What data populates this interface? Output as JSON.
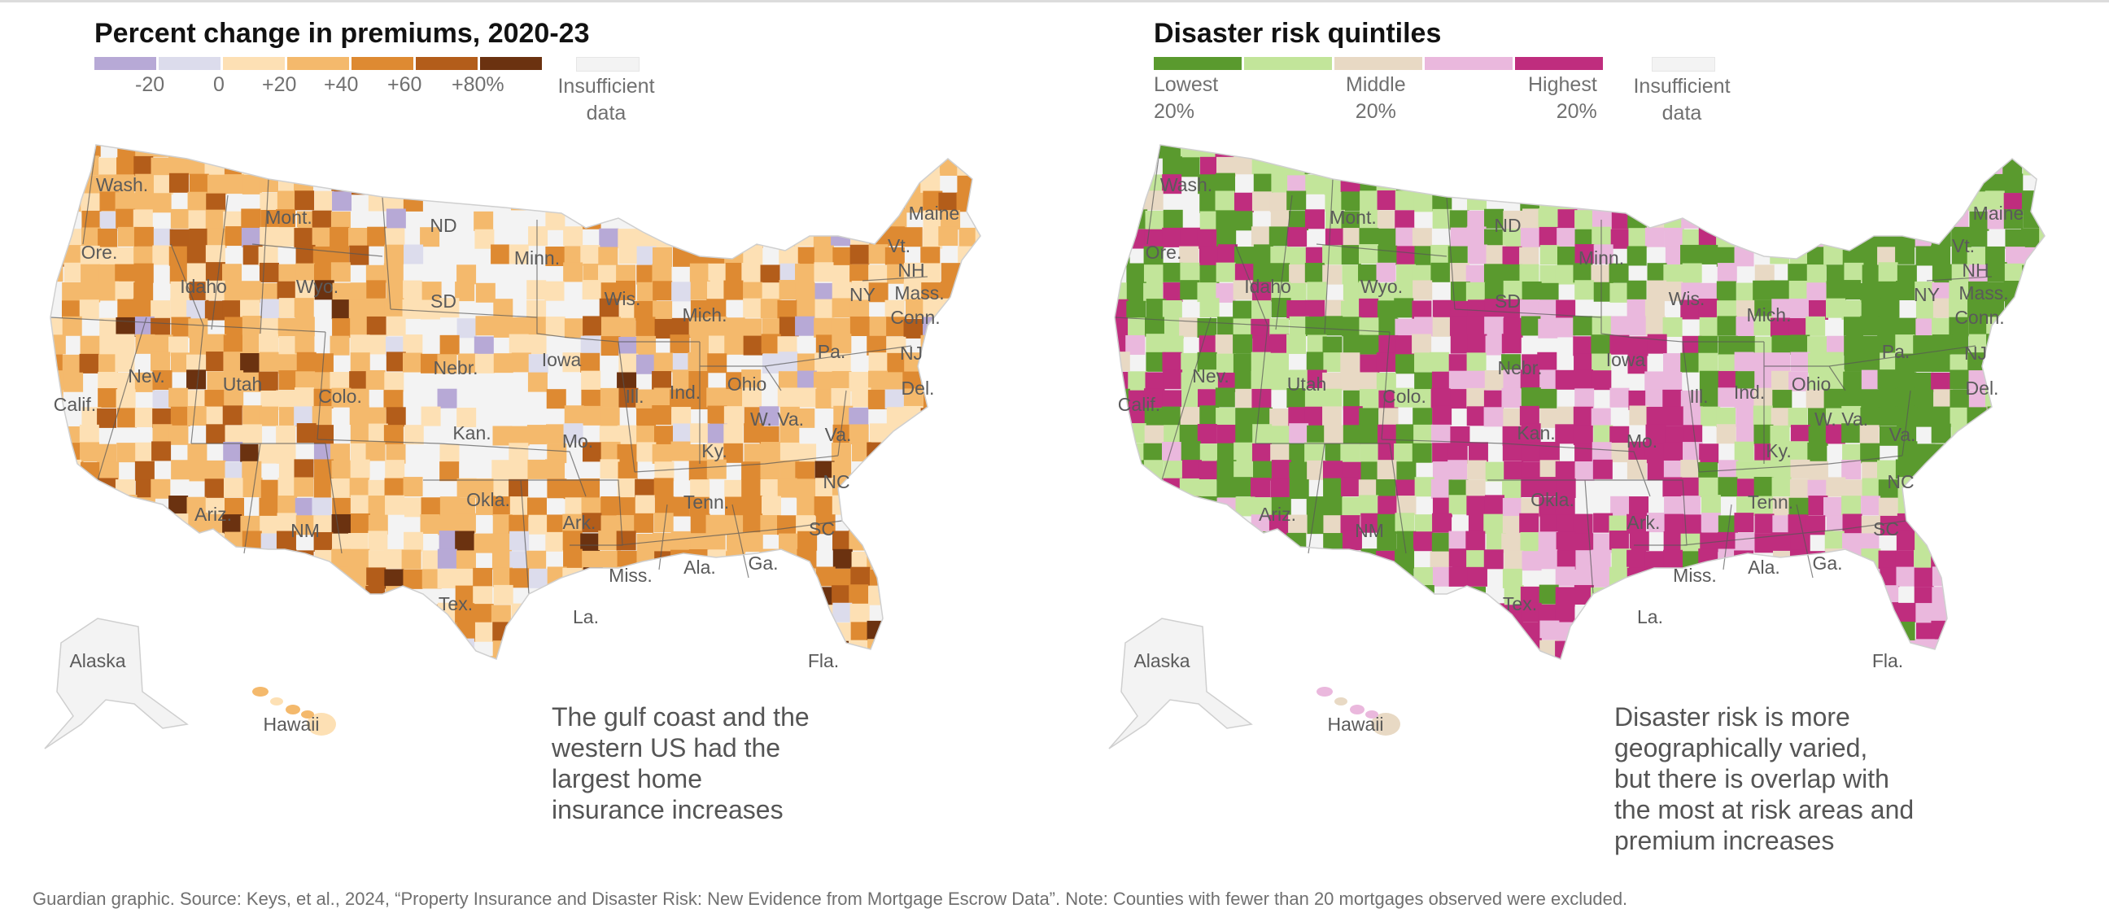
{
  "left_panel": {
    "title": "Percent change in premiums, 2020-23",
    "legend": {
      "colors": [
        "#b7a9d6",
        "#dcdcec",
        "#fde0b4",
        "#f4b96c",
        "#de8a32",
        "#b35d1a",
        "#6b3210"
      ],
      "labels": [
        "-20",
        "0",
        "+20",
        "+40",
        "+60",
        "+80%"
      ],
      "insufficient_color": "#f3f3f3",
      "insufficient_label_line1": "Insufficient",
      "insufficient_label_line2": "data"
    },
    "caption_lines": [
      "The gulf coast and the",
      "western US had the",
      "largest home",
      "insurance increases"
    ],
    "states": [
      "Wash.",
      "Ore.",
      "Calif.",
      "Nev.",
      "Idaho",
      "Mont.",
      "Wyo.",
      "Utah",
      "Colo.",
      "Ariz.",
      "NM",
      "ND",
      "SD",
      "Nebr.",
      "Kan.",
      "Okla.",
      "Tex.",
      "Minn.",
      "Iowa",
      "Mo.",
      "Ark.",
      "La.",
      "Wis.",
      "Ill.",
      "Mich.",
      "Ind.",
      "Ohio",
      "Ky.",
      "Tenn.",
      "Miss.",
      "Ala.",
      "Ga.",
      "Fla.",
      "SC",
      "NC",
      "Va.",
      "W. Va.",
      "Pa.",
      "NY",
      "Vt.",
      "NH",
      "Maine",
      "Mass.",
      "Conn.",
      "NJ",
      "Del.",
      "Alaska",
      "Hawaii"
    ]
  },
  "right_panel": {
    "title": "Disaster risk quintiles",
    "legend": {
      "colors": [
        "#5a9a2e",
        "#c2e59a",
        "#e8d9c4",
        "#eab8dd",
        "#bf2d7e"
      ],
      "label_lowest_1": "Lowest",
      "label_lowest_2": "20%",
      "label_middle_1": "Middle",
      "label_middle_2": "20%",
      "label_highest_1": "Highest",
      "label_highest_2": "20%",
      "insufficient_color": "#f3f3f3",
      "insufficient_label_line1": "Insufficient",
      "insufficient_label_line2": "data"
    },
    "caption_lines": [
      "Disaster risk is more",
      "geographically varied,",
      "but there is overlap with",
      "the most at risk areas and",
      "premium increases"
    ],
    "states": [
      "Wash.",
      "Ore.",
      "Calif.",
      "Nev.",
      "Idaho",
      "Mont.",
      "Wyo.",
      "Utah",
      "Colo.",
      "Ariz.",
      "NM",
      "ND",
      "SD",
      "Nebr.",
      "Kan.",
      "Okla.",
      "Tex.",
      "Minn.",
      "Iowa",
      "Mo.",
      "Ark.",
      "La.",
      "Wis.",
      "Ill.",
      "Mich.",
      "Ind.",
      "Ohio",
      "Ky.",
      "Tenn.",
      "Miss.",
      "Ala.",
      "Ga.",
      "Fla.",
      "SC",
      "NC",
      "Va.",
      "W. Va.",
      "Pa.",
      "NY",
      "Vt.",
      "NH",
      "Maine",
      "Mass.",
      "Conn.",
      "NJ",
      "Del.",
      "Alaska",
      "Hawaii"
    ]
  },
  "footer": "Guardian graphic. Source: Keys, et al., 2024, “Property Insurance and Disaster Risk: New Evidence from Mortgage Escrow Data”. Note: Counties with fewer than 20 mortgages observed were excluded."
}
